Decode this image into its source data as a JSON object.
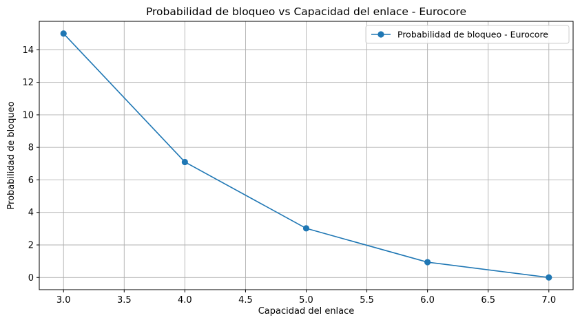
{
  "chart_data": {
    "type": "line",
    "title": "Probabilidad de bloqueo vs Capacidad del enlace - Eurocore",
    "xlabel": "Capacidad del enlace",
    "ylabel": "Probabilidad de bloqueo",
    "x": [
      3.0,
      4.0,
      5.0,
      6.0,
      7.0
    ],
    "series": [
      {
        "name": "Probabilidad de bloqueo - Eurocore",
        "values": [
          15.0,
          7.1,
          3.02,
          0.94,
          0.0
        ],
        "color": "#1f77b4",
        "marker": "circle"
      }
    ],
    "xlim": [
      2.8,
      7.2
    ],
    "ylim": [
      -0.75,
      15.75
    ],
    "x_ticks": [
      3.0,
      3.5,
      4.0,
      4.5,
      5.0,
      5.5,
      6.0,
      6.5,
      7.0
    ],
    "x_tick_labels": [
      "3.0",
      "3.5",
      "4.0",
      "4.5",
      "5.0",
      "5.5",
      "6.0",
      "6.5",
      "7.0"
    ],
    "y_ticks": [
      0,
      2,
      4,
      6,
      8,
      10,
      12,
      14
    ],
    "y_tick_labels": [
      "0",
      "2",
      "4",
      "6",
      "8",
      "10",
      "12",
      "14"
    ],
    "grid": true,
    "legend_position": "upper right"
  }
}
